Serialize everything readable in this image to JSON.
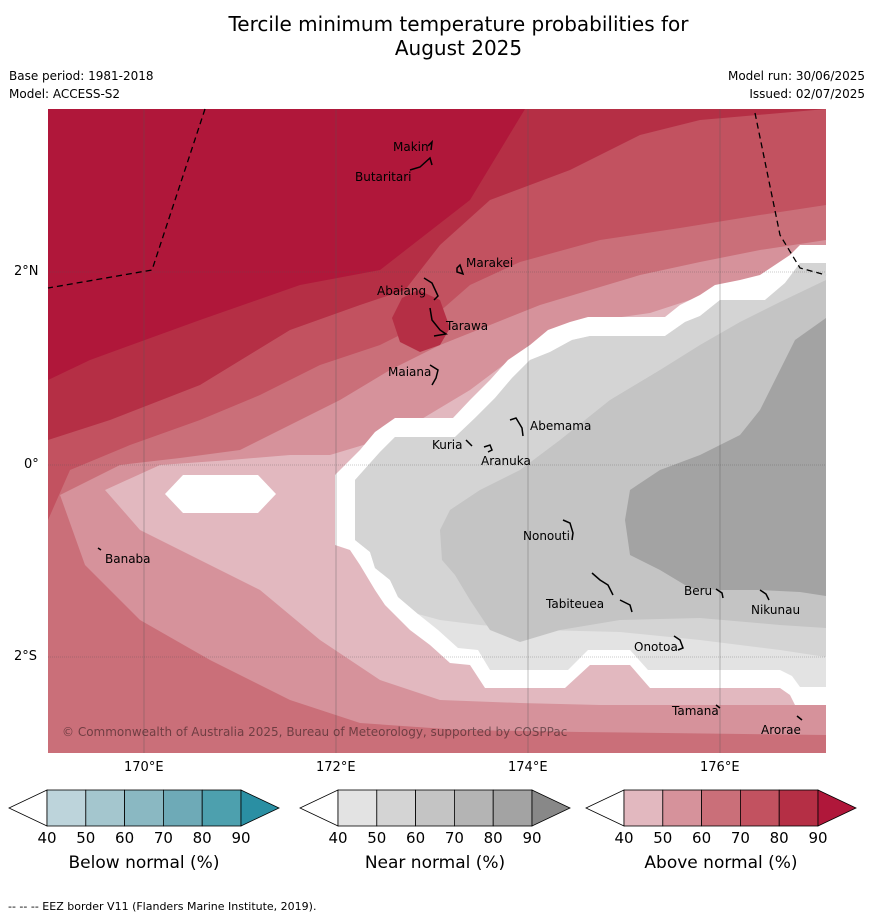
{
  "title_line1": "Tercile minimum temperature probabilities for",
  "title_line2": "August 2025",
  "base_period": "Base period: 1981-2018",
  "model": "Model: ACCESS-S2",
  "model_run": "Model run: 30/06/2025",
  "issued": "Issued: 02/07/2025",
  "lat_ticks": [
    "2°N",
    "0°",
    "2°S"
  ],
  "lon_ticks": [
    "170°E",
    "172°E",
    "174°E",
    "176°E"
  ],
  "islands": [
    "Makin",
    "Butaritari",
    "Marakei",
    "Abaiang",
    "Tarawa",
    "Maiana",
    "Abemama",
    "Kuria",
    "Aranuka",
    "Banaba",
    "Nonouti",
    "Tabiteuea",
    "Beru",
    "Nikunau",
    "Onotoa",
    "Tamana",
    "Arorae"
  ],
  "copyright": "© Commonwealth of Australia 2025, Bureau of Meteorology, supported by COSPPac",
  "colorbars": [
    {
      "label": "Below normal (%)",
      "ticks": [
        "40",
        "50",
        "60",
        "70",
        "80",
        "90"
      ],
      "colors": [
        "#bdd4db",
        "#a4c6ce",
        "#8ab8c2",
        "#6eaab7",
        "#4da0ae",
        "#2a8fa3"
      ]
    },
    {
      "label": "Near normal (%)",
      "ticks": [
        "40",
        "50",
        "60",
        "70",
        "80",
        "90"
      ],
      "colors": [
        "#e3e3e3",
        "#d4d4d4",
        "#c4c4c4",
        "#b4b4b4",
        "#a3a3a3",
        "#888888"
      ]
    },
    {
      "label": "Above normal (%)",
      "ticks": [
        "40",
        "50",
        "60",
        "70",
        "80",
        "90"
      ],
      "colors": [
        "#e2b8bf",
        "#d6929b",
        "#ca6f79",
        "#c25260",
        "#b52f45",
        "#b0173a"
      ]
    }
  ],
  "footer": "--  --  -- EEZ border V11 (Flanders Marine Institute, 2019)."
}
